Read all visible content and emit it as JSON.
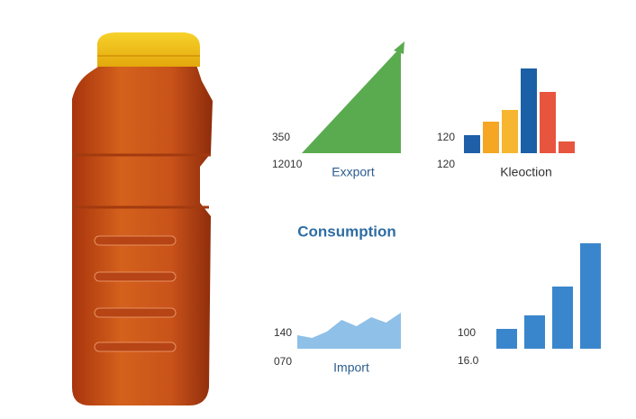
{
  "export_panel": {
    "label_top": "350",
    "label_bottom": "12010",
    "title": "Exxport",
    "color": "#5aab4f",
    "values": [
      0,
      118
    ]
  },
  "production_panel": {
    "label_top": "120",
    "label_bottom": "120",
    "title": "Kleoction",
    "values": [
      20,
      35,
      48,
      94,
      68,
      13
    ],
    "colors": [
      "#1f5fa8",
      "#f5a623",
      "#f6b62f",
      "#1b5fa6",
      "#e8553f",
      "#e8553f"
    ]
  },
  "heading": "Consumption",
  "import_panel": {
    "label_top": "140",
    "label_bottom": "070",
    "title": "Import",
    "color": "#8fc0e8",
    "values": [
      15,
      12,
      19,
      32,
      25,
      35,
      29,
      40
    ]
  },
  "consumption_panel": {
    "label_top": "100",
    "label_bottom": "16.0",
    "color": "#3a86cc",
    "values": [
      22,
      37,
      69,
      117
    ]
  }
}
